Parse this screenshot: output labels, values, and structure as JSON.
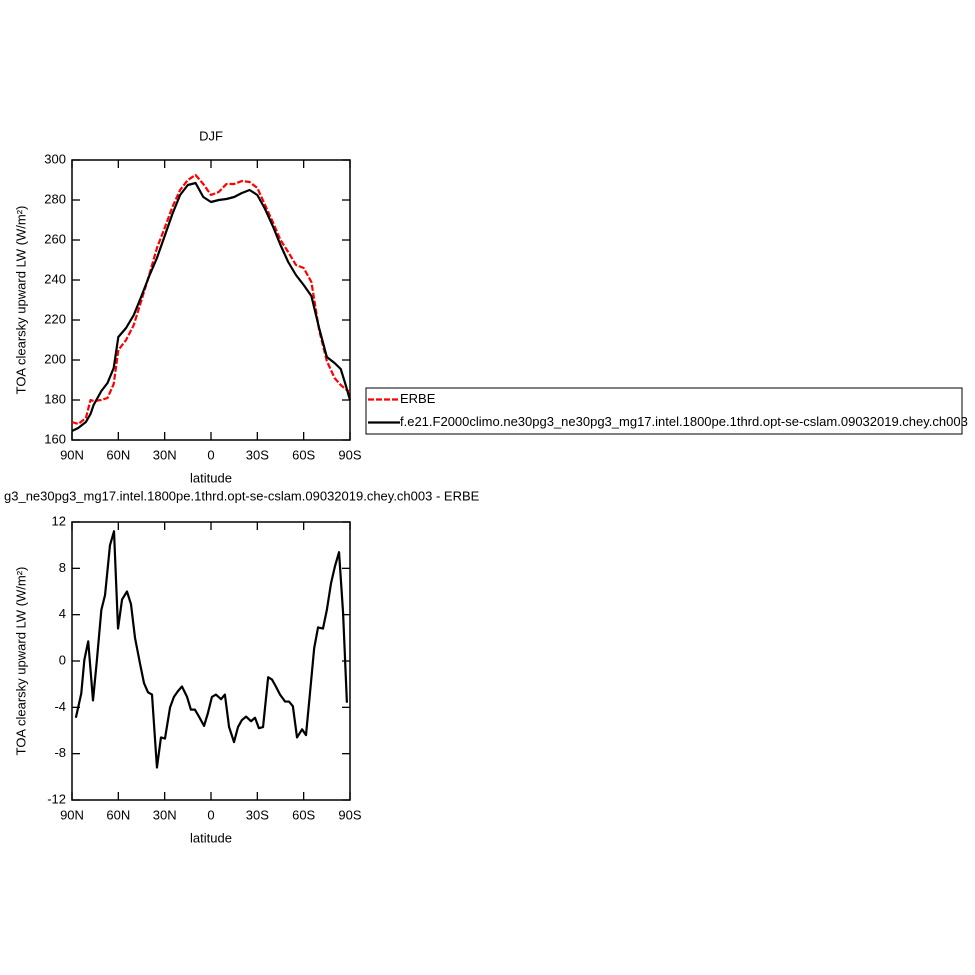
{
  "chart_data": [
    {
      "type": "line",
      "title": "DJF",
      "xlabel": "latitude",
      "ylabel": "TOA clearsky upward LW (W/m²)",
      "x": [
        90,
        86,
        81,
        78,
        76,
        71,
        67,
        63,
        60,
        55,
        50,
        45,
        40,
        35,
        30,
        25,
        20,
        15,
        10,
        5,
        0,
        -5,
        -10,
        -15,
        -20,
        -25,
        -30,
        -35,
        -40,
        -45,
        -50,
        -55,
        -60,
        -65,
        -70,
        -75,
        -80,
        -84,
        -87,
        -90
      ],
      "series": [
        {
          "name": "ERBE",
          "color": "#ff0000",
          "line_style": "dashed",
          "values": [
            169,
            168,
            171,
            180,
            179.5,
            180,
            181,
            188,
            205,
            210,
            217.5,
            230,
            242.5,
            256,
            266,
            276.5,
            285,
            290,
            292.5,
            288,
            282.5,
            284,
            288,
            288,
            289.5,
            289,
            286,
            277.5,
            269,
            260,
            254,
            247.5,
            246,
            239,
            215,
            199.5,
            191,
            187.5,
            185.5,
            184
          ]
        },
        {
          "name": "f.e21.F2000climo.ne30pg3_ne30pg3_mg17.intel.1800pe.1thrd.opt-se-cslam.09032019.chey.ch003",
          "color": "#000000",
          "line_style": "solid",
          "values": [
            164.5,
            166,
            169,
            173,
            177.5,
            184.5,
            188.5,
            196,
            211.5,
            216,
            222.5,
            232,
            242,
            251,
            262,
            273,
            282.5,
            287.5,
            288.5,
            281.5,
            279,
            280,
            280.5,
            281.5,
            283.5,
            285,
            282.5,
            275.5,
            267,
            257.5,
            249,
            242.5,
            237.5,
            232,
            216,
            201.5,
            198.5,
            195.5,
            188,
            180
          ]
        }
      ],
      "xlim": [
        90,
        -90
      ],
      "xticks": [
        {
          "value": 90,
          "label": "90N"
        },
        {
          "value": 60,
          "label": "60N"
        },
        {
          "value": 30,
          "label": "30N"
        },
        0,
        {
          "value": -30,
          "label": "30S"
        },
        {
          "value": -60,
          "label": "60S"
        },
        {
          "value": -90,
          "label": "90S"
        }
      ],
      "ylim": [
        160,
        300
      ],
      "yticks": [
        160,
        180,
        200,
        220,
        240,
        260,
        280,
        300
      ]
    },
    {
      "type": "line",
      "title": "g3_ne30pg3_mg17.intel.1800pe.1thrd.opt-se-cslam.09032019.chey.ch003 - ERBE",
      "xlabel": "latitude",
      "ylabel": "TOA clearsky upward LW (W/m²)",
      "x": [
        87.5,
        84,
        82,
        79.5,
        76.4,
        74,
        71,
        68.6,
        65.4,
        62.8,
        60.2,
        57.6,
        54.4,
        51.8,
        49.2,
        46,
        43.4,
        40.8,
        38.2,
        35,
        32.4,
        29.8,
        26.5,
        24,
        21.4,
        18.8,
        15.5,
        13,
        10.4,
        7.8,
        4.5,
        2,
        -0.6,
        -3.2,
        -6.5,
        -9,
        -11.7,
        -14.9,
        -17.5,
        -20,
        -22.7,
        -25.9,
        -28.5,
        -31,
        -33.7,
        -37,
        -39.5,
        -42,
        -44.7,
        -48,
        -50.5,
        -53,
        -55.7,
        -59,
        -61.5,
        -64,
        -66.8,
        -69.3,
        -72.5,
        -75,
        -77.7,
        -80.3,
        -82.9,
        -85.5,
        -88
      ],
      "values": [
        -4.9,
        -2.8,
        0.1,
        1.7,
        -3.4,
        -0.1,
        4.4,
        5.7,
        10,
        11.2,
        2.8,
        5.3,
        6,
        4.9,
        2,
        -0.2,
        -1.9,
        -2.7,
        -2.9,
        -9.2,
        -6.6,
        -6.7,
        -4,
        -3.1,
        -2.6,
        -2.2,
        -3.1,
        -4.2,
        -4.2,
        -4.8,
        -5.6,
        -4.5,
        -3.1,
        -2.9,
        -3.3,
        -2.9,
        -5.7,
        -7,
        -5.7,
        -5.1,
        -4.8,
        -5.2,
        -4.9,
        -5.8,
        -5.7,
        -1.4,
        -1.6,
        -2.2,
        -2.9,
        -3.5,
        -3.5,
        -3.9,
        -6.6,
        -5.9,
        -6.4,
        -2.9,
        1.1,
        2.9,
        2.8,
        4.4,
        6.7,
        8.2,
        9.4,
        4.2,
        -3.6
      ],
      "color": "#000000",
      "xlim": [
        90,
        -90
      ],
      "xticks": [
        {
          "value": 90,
          "label": "90N"
        },
        {
          "value": 60,
          "label": "60N"
        },
        {
          "value": 30,
          "label": "30N"
        },
        0,
        {
          "value": -30,
          "label": "30S"
        },
        {
          "value": -60,
          "label": "60S"
        },
        {
          "value": -90,
          "label": "90S"
        }
      ],
      "ylim": [
        -12,
        12
      ],
      "yticks": [
        -12,
        -8,
        -4,
        0,
        4,
        8,
        12
      ]
    }
  ]
}
